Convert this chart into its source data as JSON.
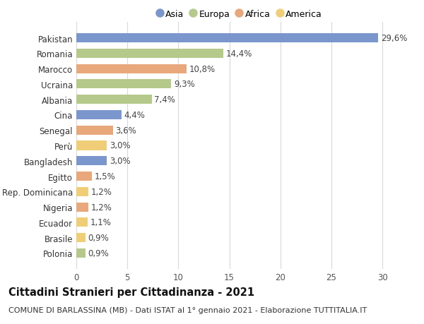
{
  "categories": [
    "Pakistan",
    "Romania",
    "Marocco",
    "Ucraina",
    "Albania",
    "Cina",
    "Senegal",
    "Perù",
    "Bangladesh",
    "Egitto",
    "Rep. Dominicana",
    "Nigeria",
    "Ecuador",
    "Brasile",
    "Polonia"
  ],
  "values": [
    29.6,
    14.4,
    10.8,
    9.3,
    7.4,
    4.4,
    3.6,
    3.0,
    3.0,
    1.5,
    1.2,
    1.2,
    1.1,
    0.9,
    0.9
  ],
  "labels": [
    "29,6%",
    "14,4%",
    "10,8%",
    "9,3%",
    "7,4%",
    "4,4%",
    "3,6%",
    "3,0%",
    "3,0%",
    "1,5%",
    "1,2%",
    "1,2%",
    "1,1%",
    "0,9%",
    "0,9%"
  ],
  "colors": [
    "#7a96cc",
    "#b5c98a",
    "#e8a87c",
    "#b5c98a",
    "#b5c98a",
    "#7a96cc",
    "#e8a87c",
    "#f0ce78",
    "#7a96cc",
    "#e8a87c",
    "#f0ce78",
    "#e8a87c",
    "#f0ce78",
    "#f0ce78",
    "#b5c98a"
  ],
  "legend_labels": [
    "Asia",
    "Europa",
    "Africa",
    "America"
  ],
  "legend_colors": [
    "#7a96cc",
    "#b5c98a",
    "#e8a87c",
    "#f0ce78"
  ],
  "title_bold": "Cittadini Stranieri per Cittadinanza - 2021",
  "subtitle": "COMUNE DI BARLASSINA (MB) - Dati ISTAT al 1° gennaio 2021 - Elaborazione TUTTITALIA.IT",
  "xlim": [
    0,
    32
  ],
  "xticks": [
    0,
    5,
    10,
    15,
    20,
    25,
    30
  ],
  "background_color": "#ffffff",
  "grid_color": "#d8d8d8",
  "bar_height": 0.6,
  "label_fontsize": 8.5,
  "tick_fontsize": 8.5,
  "title_fontsize": 10.5,
  "subtitle_fontsize": 8.0
}
